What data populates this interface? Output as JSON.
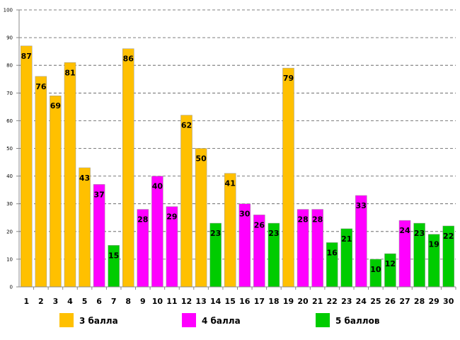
{
  "chart_data": {
    "type": "bar",
    "title": "",
    "xlabel": "",
    "ylabel": "",
    "ylim": [
      0,
      100
    ],
    "y_ticks": [
      0,
      10,
      20,
      30,
      40,
      50,
      60,
      70,
      80,
      90,
      100
    ],
    "grid": true,
    "categories": [
      "1",
      "2",
      "3",
      "4",
      "5",
      "6",
      "7",
      "8",
      "9",
      "10",
      "11",
      "12",
      "13",
      "14",
      "15",
      "16",
      "17",
      "18",
      "19",
      "20",
      "21",
      "22",
      "23",
      "24",
      "25",
      "26",
      "27",
      "28",
      "29",
      "30"
    ],
    "values": [
      87,
      76,
      69,
      81,
      43,
      37,
      15,
      86,
      28,
      40,
      29,
      62,
      50,
      23,
      41,
      30,
      26,
      23,
      79,
      28,
      28,
      16,
      21,
      33,
      10,
      12,
      24,
      23,
      19,
      22
    ],
    "groups": [
      "3 балла",
      "4 балла",
      "5 баллов"
    ],
    "group_of_bar": [
      0,
      0,
      0,
      0,
      0,
      1,
      2,
      0,
      1,
      1,
      1,
      0,
      0,
      2,
      0,
      1,
      1,
      2,
      0,
      1,
      1,
      2,
      2,
      1,
      2,
      2,
      1,
      2,
      2,
      2
    ],
    "legend": [
      {
        "label": "3 балла",
        "color": "#FFC000"
      },
      {
        "label": "4 балла",
        "color": "#FF00FF"
      },
      {
        "label": "5 баллов",
        "color": "#00CC00"
      }
    ],
    "legend_position": "bottom"
  }
}
